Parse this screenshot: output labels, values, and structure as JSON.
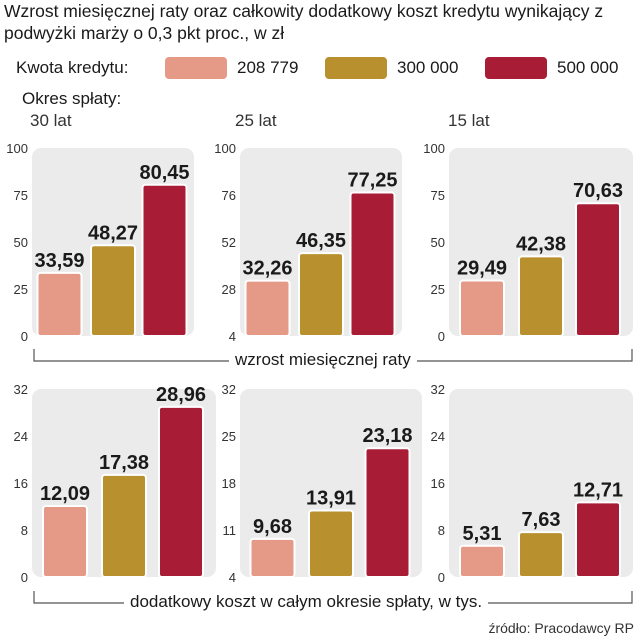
{
  "title": "Wzrost miesięcznej raty oraz całkowity dodatkowy koszt kredytu wynikający z podwyżki marży o 0,3 pkt proc., w zł",
  "legend": {
    "label": "Kwota kredytu:",
    "items": [
      {
        "label": "208 779",
        "color": "#e59a88"
      },
      {
        "label": "300 000",
        "color": "#b8912e"
      },
      {
        "label": "500 000",
        "color": "#a81c35"
      }
    ]
  },
  "okres_label": "Okres spłaty:",
  "periods": [
    "30 lat",
    "25 lat",
    "15 lat"
  ],
  "section_labels": {
    "top": "wzrost miesięcznej raty",
    "bottom": "dodatkowy koszt w całym okresie spłaty, w tys."
  },
  "source": "źródło: Pracodawcy RP",
  "chart_data": [
    {
      "type": "bar",
      "title": "wzrost miesięcznej raty – 30 lat",
      "categories": [
        "208 779",
        "300 000",
        "500 000"
      ],
      "values": [
        33.59,
        48.27,
        80.45
      ],
      "labels": [
        "33,59",
        "48,27",
        "80,45"
      ],
      "ylim": [
        0,
        100
      ],
      "ticks": [
        "0",
        "25",
        "50",
        "75",
        "100"
      ]
    },
    {
      "type": "bar",
      "title": "wzrost miesięcznej raty – 25 lat",
      "categories": [
        "208 779",
        "300 000",
        "500 000"
      ],
      "values": [
        32.26,
        46.35,
        77.25
      ],
      "labels": [
        "32,26",
        "46,35",
        "77,25"
      ],
      "ylim": [
        4,
        100
      ],
      "ticks": [
        "4",
        "28",
        "52",
        "76",
        "100"
      ]
    },
    {
      "type": "bar",
      "title": "wzrost miesięcznej raty – 15 lat",
      "categories": [
        "208 779",
        "300 000",
        "500 000"
      ],
      "values": [
        29.49,
        42.38,
        70.63
      ],
      "labels": [
        "29,49",
        "42,38",
        "70,63"
      ],
      "ylim": [
        0,
        100
      ],
      "ticks": [
        "0",
        "25",
        "50",
        "75",
        "100"
      ]
    },
    {
      "type": "bar",
      "title": "dodatkowy koszt – 30 lat",
      "categories": [
        "208 779",
        "300 000",
        "500 000"
      ],
      "values": [
        12.09,
        17.38,
        28.96
      ],
      "labels": [
        "12,09",
        "17,38",
        "28,96"
      ],
      "ylim": [
        0,
        32
      ],
      "ticks": [
        "0",
        "8",
        "16",
        "24",
        "32"
      ]
    },
    {
      "type": "bar",
      "title": "dodatkowy koszt – 25 lat",
      "categories": [
        "208 779",
        "300 000",
        "500 000"
      ],
      "values": [
        9.68,
        13.91,
        23.18
      ],
      "labels": [
        "9,68",
        "13,91",
        "23,18"
      ],
      "ylim": [
        4,
        32
      ],
      "ticks": [
        "4",
        "11",
        "18",
        "25",
        "32"
      ]
    },
    {
      "type": "bar",
      "title": "dodatkowy koszt – 15 lat",
      "categories": [
        "208 779",
        "300 000",
        "500 000"
      ],
      "values": [
        5.31,
        7.63,
        12.71
      ],
      "labels": [
        "5,31",
        "7,63",
        "12,71"
      ],
      "ylim": [
        0,
        32
      ],
      "ticks": [
        "0",
        "8",
        "16",
        "24",
        "32"
      ]
    }
  ]
}
